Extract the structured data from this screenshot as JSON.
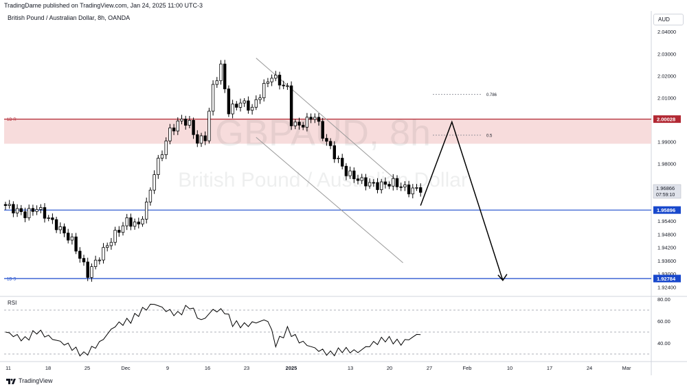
{
  "header": {
    "published_line": "TradingDame published on TradingView.com, Jan 24, 2025 11:00 UTC-3",
    "symbol_line": "British Pound / Australian Dollar, 8h, OANDA",
    "currency_button": "AUD"
  },
  "watermark": {
    "line1": "GBPAUD, 8h",
    "line2": "British Pound / Australian Dollar"
  },
  "colors": {
    "up": "#ffffff",
    "down": "#000000",
    "wick": "#000000",
    "resistance": "#b22833",
    "support": "#1848cc",
    "zone": "#f7dcdc",
    "rsi_line": "#000000",
    "channel": "#9b9b9b",
    "arrow": "#000000"
  },
  "chart_data": [
    {
      "type": "candlestick",
      "title": "British Pound / Australian Dollar, 8h, OANDA",
      "ylim": [
        1.919,
        2.044
      ],
      "y_ticks": [
        "2.04000",
        "2.03000",
        "2.02000",
        "2.01000",
        "1.99000",
        "1.98000",
        "1.95400",
        "1.94800",
        "1.94200",
        "1.93600",
        "1.93000",
        "1.92400"
      ],
      "x_ticks": [
        "11",
        "18",
        "25",
        "Dec",
        "9",
        "16",
        "23",
        "2025",
        "13",
        "20",
        "27",
        "Feb",
        "10",
        "17",
        "24",
        "Mar"
      ],
      "candle_count": 107,
      "anchors": [
        [
          0,
          1.961
        ],
        [
          5,
          1.957
        ],
        [
          8,
          1.96
        ],
        [
          12,
          1.9535
        ],
        [
          17,
          1.945
        ],
        [
          21,
          1.93
        ],
        [
          24,
          1.938
        ],
        [
          28,
          1.948
        ],
        [
          31,
          1.954
        ],
        [
          34,
          1.952
        ],
        [
          36,
          1.961
        ],
        [
          38,
          1.976
        ],
        [
          42,
          1.995
        ],
        [
          45,
          2.0
        ],
        [
          47,
          1.998
        ],
        [
          49,
          1.99
        ],
        [
          51,
          1.992
        ],
        [
          53,
          2.015
        ],
        [
          55,
          2.024
        ],
        [
          57,
          2.004
        ],
        [
          60,
          2.008
        ],
        [
          63,
          2.005
        ],
        [
          66,
          2.015
        ],
        [
          68,
          2.02
        ],
        [
          72,
          2.014
        ],
        [
          73,
          1.999
        ],
        [
          75,
          1.997
        ],
        [
          79,
          2.002
        ],
        [
          81,
          1.993
        ],
        [
          84,
          1.984
        ],
        [
          87,
          1.976
        ],
        [
          91,
          1.972
        ],
        [
          95,
          1.97
        ],
        [
          99,
          1.9715
        ],
        [
          103,
          1.968
        ],
        [
          106,
          1.9687
        ]
      ],
      "last_price": "1.96866",
      "countdown": "07:59:10",
      "levels": [
        {
          "name": "resistance",
          "label": "1D R",
          "value": 2.00028,
          "value_label": "2.00028"
        },
        {
          "name": "support-mid",
          "label": "",
          "value": 1.95896,
          "value_label": "1.95896"
        },
        {
          "name": "support",
          "label": "1D S",
          "value": 1.92784,
          "value_label": "1.92784"
        }
      ],
      "supply_zone": [
        1.9891,
        2.00028
      ],
      "fib_levels": [
        {
          "label": "0.786",
          "value": 2.0115
        },
        {
          "label": "0.5",
          "value": 1.993
        }
      ],
      "channel": {
        "upper": [
          [
            64,
            2.028
          ],
          [
            96,
            1.973
          ]
        ],
        "lower": [
          [
            64,
            1.992
          ],
          [
            98,
            1.935
          ]
        ]
      },
      "projection": {
        "points": [
          [
            0,
            1.961
          ],
          [
            8,
            1.999
          ],
          [
            21,
            1.927
          ]
        ]
      }
    },
    {
      "type": "line",
      "title": "RSI",
      "ylim": [
        25,
        85
      ],
      "y_ticks": [
        "80.00",
        "60.00",
        "40.00"
      ],
      "bands": [
        30,
        50,
        70
      ],
      "series": [
        {
          "anchors": [
            [
              0,
              50
            ],
            [
              5,
              43
            ],
            [
              8,
              51
            ],
            [
              12,
              44
            ],
            [
              16,
              38
            ],
            [
              20,
              29
            ],
            [
              24,
              40
            ],
            [
              28,
              56
            ],
            [
              32,
              61
            ],
            [
              35,
              70
            ],
            [
              38,
              76
            ],
            [
              41,
              70
            ],
            [
              44,
              66
            ],
            [
              47,
              74
            ],
            [
              50,
              60
            ],
            [
              53,
              70
            ],
            [
              56,
              69
            ],
            [
              58,
              58
            ],
            [
              61,
              56
            ],
            [
              64,
              59
            ],
            [
              67,
              61
            ],
            [
              69,
              39
            ],
            [
              72,
              52
            ],
            [
              75,
              42
            ],
            [
              79,
              35
            ],
            [
              83,
              30
            ],
            [
              86,
              34
            ],
            [
              90,
              32
            ],
            [
              93,
              38
            ],
            [
              97,
              44
            ],
            [
              101,
              40
            ],
            [
              106,
              49
            ]
          ]
        }
      ]
    }
  ]
}
